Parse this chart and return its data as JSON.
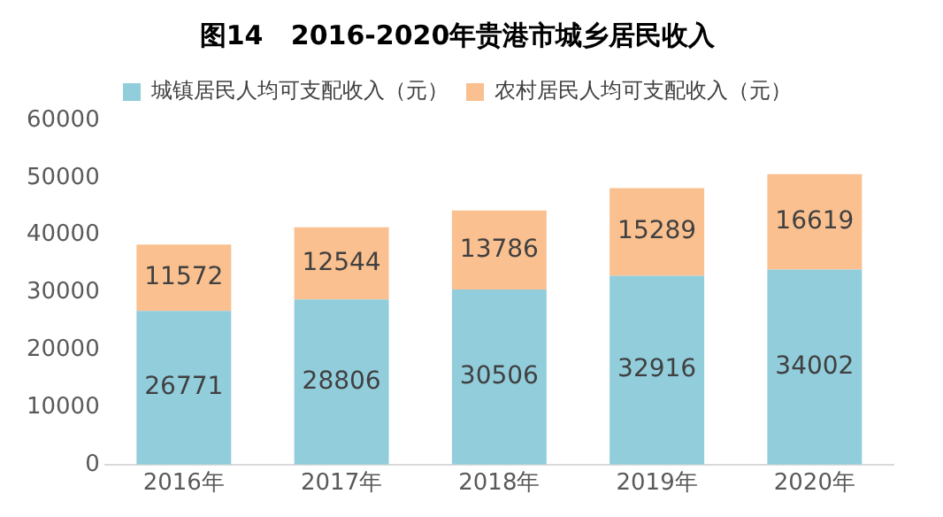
{
  "chart_data": {
    "type": "bar",
    "title": "图14   2016-2020年贵港市城乡居民收入",
    "categories": [
      "2016年",
      "2017年",
      "2018年",
      "2019年",
      "2020年"
    ],
    "stacked": true,
    "series": [
      {
        "name": "城镇居民人均可支配收入（元）",
        "color": "#92cddc",
        "values": [
          26771,
          28806,
          30506,
          32916,
          34002
        ]
      },
      {
        "name": "农村居民人均可支配收入（元）",
        "color": "#fac090",
        "values": [
          11572,
          12544,
          13786,
          15289,
          16619
        ]
      }
    ],
    "ylim": [
      0,
      60000
    ],
    "yticks": [
      0,
      10000,
      20000,
      30000,
      40000,
      50000,
      60000
    ],
    "grid": false,
    "legend": "top",
    "data_labels": true
  }
}
